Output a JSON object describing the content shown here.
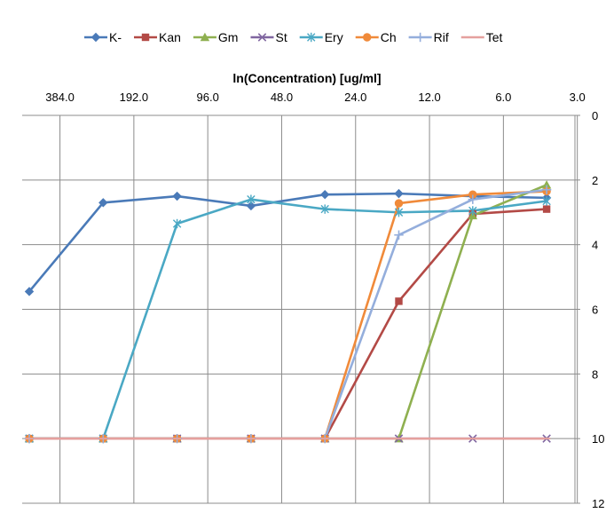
{
  "chart_data": {
    "type": "line",
    "title": "ln(Concentration) [ug/ml]",
    "x_axis": {
      "position": "top",
      "reversed": true,
      "scale": "log",
      "ticks": [
        384.0,
        192.0,
        96.0,
        48.0,
        24.0,
        12.0,
        6.0,
        3.0
      ],
      "tick_labels": [
        "384.0",
        "192.0",
        "96.0",
        "48.0",
        "24.0",
        "12.0",
        "6.0",
        "3.0"
      ]
    },
    "y_axis": {
      "position": "right",
      "reversed": true,
      "ylim": [
        0,
        12
      ],
      "ticks": [
        0,
        2,
        4,
        6,
        8,
        10,
        12
      ],
      "tick_labels": [
        "0",
        "2",
        "4",
        "6",
        "8",
        "10",
        "12"
      ]
    },
    "grid": true,
    "legend": "top",
    "x": [
      512,
      256,
      128,
      64,
      32,
      16,
      8,
      4
    ],
    "series": [
      {
        "name": "K-",
        "color": "#4a7ab8",
        "marker": "diamond",
        "values": [
          5.45,
          2.7,
          2.5,
          2.8,
          2.45,
          2.42,
          2.5,
          2.55
        ]
      },
      {
        "name": "Kan",
        "color": "#b34a46",
        "marker": "square",
        "values": [
          10,
          10,
          10,
          10,
          10,
          5.75,
          3.05,
          2.9
        ]
      },
      {
        "name": "Gm",
        "color": "#8fb050",
        "marker": "triangle",
        "values": [
          10,
          10,
          10,
          10,
          10,
          10,
          3.1,
          2.15
        ]
      },
      {
        "name": "St",
        "color": "#8066a0",
        "marker": "x",
        "values": [
          10,
          10,
          10,
          10,
          10,
          10,
          10,
          10
        ]
      },
      {
        "name": "Ery",
        "color": "#4aa8c4",
        "marker": "star",
        "values": [
          10,
          10,
          3.35,
          2.6,
          2.9,
          3.0,
          2.95,
          2.65
        ]
      },
      {
        "name": "Ch",
        "color": "#f08a3a",
        "marker": "circle",
        "values": [
          10,
          10,
          10,
          10,
          10,
          2.72,
          2.45,
          2.35
        ]
      },
      {
        "name": "Rif",
        "color": "#94aedc",
        "marker": "plus",
        "values": [
          10,
          10,
          10,
          10,
          10,
          3.7,
          2.6,
          2.3
        ]
      },
      {
        "name": "Tet",
        "color": "#e5a09e",
        "marker": "dash",
        "values": [
          10,
          10,
          10,
          10,
          10,
          10,
          10,
          10
        ]
      }
    ]
  }
}
